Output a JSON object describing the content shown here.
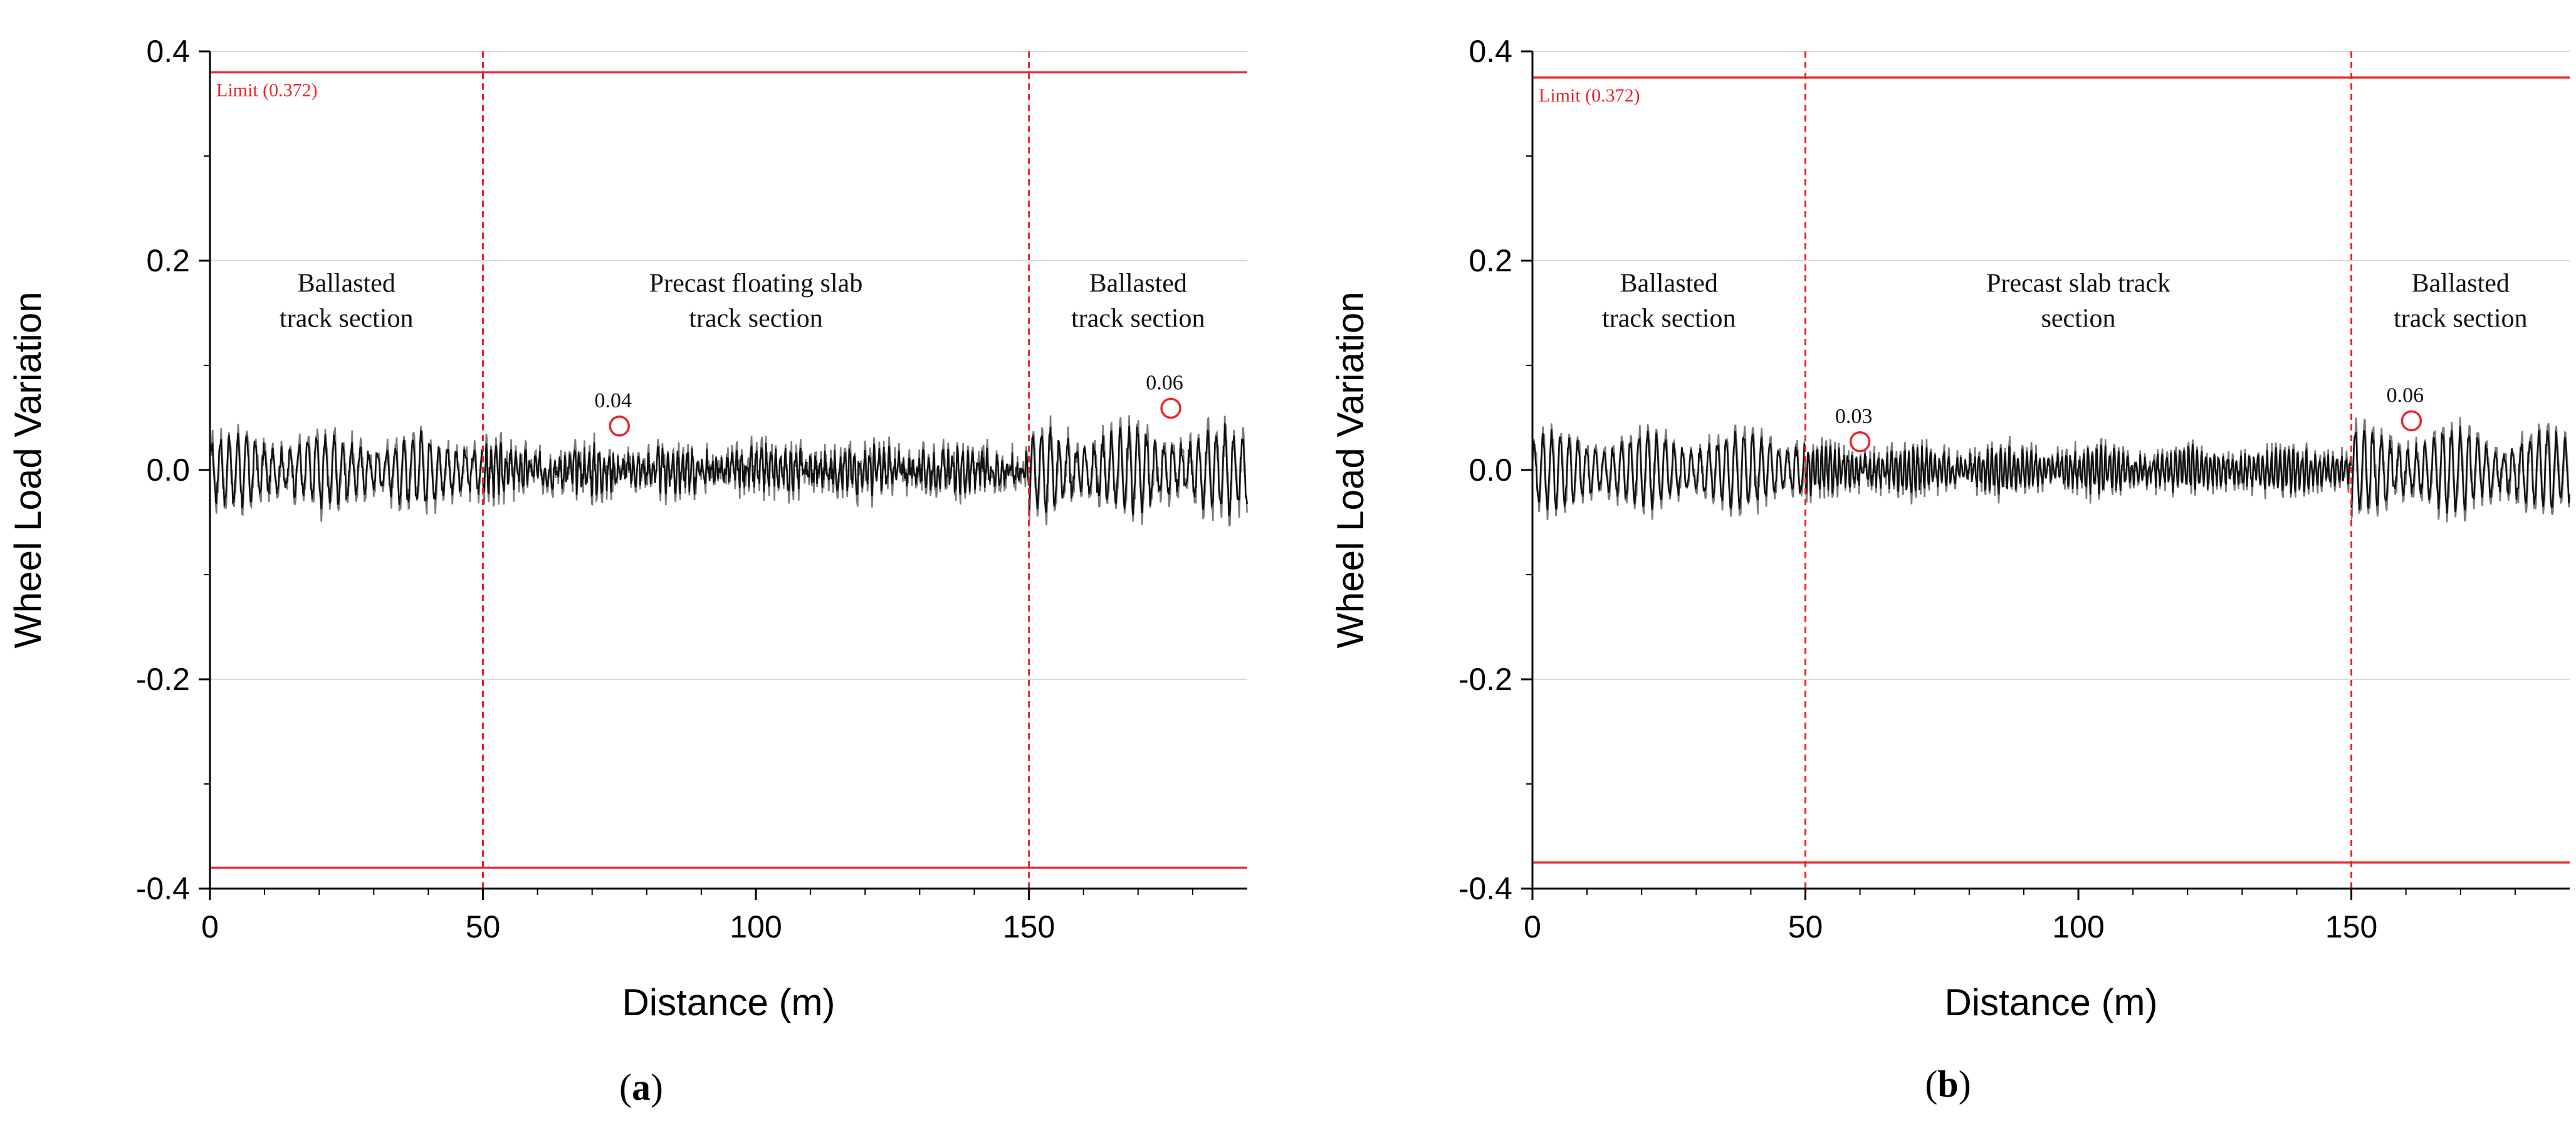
{
  "chart_data": [
    {
      "type": "line",
      "panel_label": "a",
      "xlabel": "Distance (m)",
      "ylabel": "Wheel Load Variation",
      "xlim": [
        0,
        190
      ],
      "ylim": [
        -0.4,
        0.4
      ],
      "xticks": [
        0,
        50,
        100,
        150
      ],
      "yticks": [
        -0.4,
        -0.2,
        0.0,
        0.2,
        0.4
      ],
      "ytick_labels": [
        "-0.4",
        "-0.2",
        "0.0",
        "0.2",
        "0.4"
      ],
      "limit": {
        "label": "Limit (0.372)",
        "value": 0.372,
        "upper_plot_value": 0.38,
        "lower_plot_value": -0.38,
        "color": "#e8262b"
      },
      "boundaries": [
        50,
        150
      ],
      "sections": [
        {
          "lines": [
            "Ballasted",
            "track section"
          ],
          "x_center": 25,
          "y": 0.18
        },
        {
          "lines": [
            "Precast floating slab",
            "track section"
          ],
          "x_center": 100,
          "y": 0.18
        },
        {
          "lines": [
            "Ballasted",
            "track section"
          ],
          "x_center": 170,
          "y": 0.18
        }
      ],
      "annotations": [
        {
          "text": "0.04",
          "x": 75,
          "y": 0.042
        },
        {
          "text": "0.06",
          "x": 176,
          "y": 0.059
        }
      ],
      "series": [
        {
          "name": "ballasted-1",
          "x_start": 0,
          "x_end": 50,
          "amplitude": 0.038,
          "cycle": 1.6,
          "noise": 0.012
        },
        {
          "name": "precast-floating-slab",
          "x_start": 50,
          "x_end": 150,
          "amplitude": 0.02,
          "cycle": 0.9,
          "noise": 0.018
        },
        {
          "name": "ballasted-2",
          "x_start": 150,
          "x_end": 190,
          "amplitude": 0.044,
          "cycle": 1.6,
          "noise": 0.014
        }
      ]
    },
    {
      "type": "line",
      "panel_label": "b",
      "xlabel": "Distance (m)",
      "ylabel": "Wheel Load Variation",
      "xlim": [
        0,
        190
      ],
      "ylim": [
        -0.4,
        0.4
      ],
      "xticks": [
        0,
        50,
        100,
        150
      ],
      "yticks": [
        -0.4,
        -0.2,
        0.0,
        0.2,
        0.4
      ],
      "ytick_labels": [
        "-0.4",
        "-0.2",
        "0.0",
        "0.2",
        "0.4"
      ],
      "limit": {
        "label": "Limit (0.372)",
        "value": 0.372,
        "upper_plot_value": 0.375,
        "lower_plot_value": -0.375,
        "color": "#e8262b"
      },
      "boundaries": [
        50,
        150
      ],
      "sections": [
        {
          "lines": [
            "Ballasted",
            "track section"
          ],
          "x_center": 25,
          "y": 0.18
        },
        {
          "lines": [
            "Precast slab track",
            "section"
          ],
          "x_center": 100,
          "y": 0.18
        },
        {
          "lines": [
            "Ballasted",
            "track section"
          ],
          "x_center": 170,
          "y": 0.18
        }
      ],
      "annotations": [
        {
          "text": "0.03",
          "x": 60,
          "y": 0.027
        },
        {
          "text": "0.06",
          "x": 161,
          "y": 0.047
        }
      ],
      "series": [
        {
          "name": "ballasted-1",
          "x_start": 0,
          "x_end": 50,
          "amplitude": 0.04,
          "cycle": 1.6,
          "noise": 0.01
        },
        {
          "name": "precast-slab",
          "x_start": 50,
          "x_end": 150,
          "amplitude": 0.022,
          "cycle": 0.8,
          "noise": 0.012
        },
        {
          "name": "ballasted-2",
          "x_start": 150,
          "x_end": 190,
          "amplitude": 0.042,
          "cycle": 1.6,
          "noise": 0.012
        }
      ]
    }
  ]
}
